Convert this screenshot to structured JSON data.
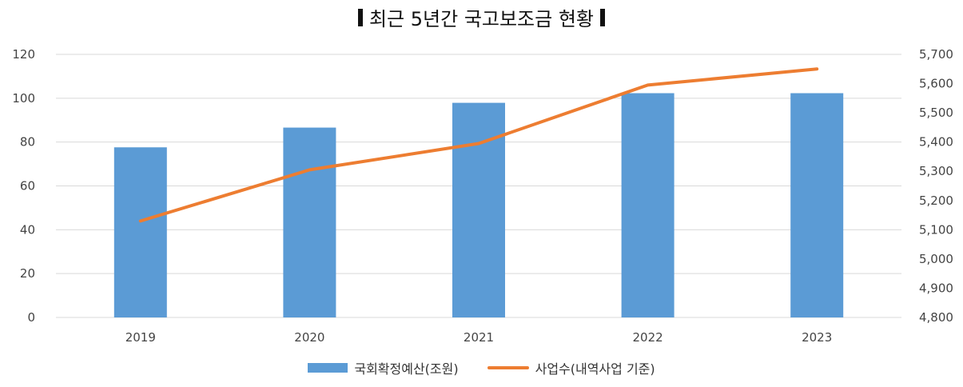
{
  "chart_data": {
    "type": "bar+line",
    "title": "최근 5년간 국고보조금 현황",
    "categories": [
      "2019",
      "2020",
      "2021",
      "2022",
      "2023"
    ],
    "series": [
      {
        "name": "국회확정예산(조원)",
        "type": "bar",
        "axis": "left",
        "color": "#5b9bd5",
        "values": [
          77.6,
          86.6,
          97.9,
          102.3,
          102.3
        ]
      },
      {
        "name": "사업수(내역사업 기준)",
        "type": "line",
        "axis": "right",
        "color": "#ed7d31",
        "values": [
          5130,
          5305,
          5395,
          5595,
          5650
        ]
      }
    ],
    "y_left": {
      "min": 0,
      "max": 120,
      "ticks": [
        "0",
        "20",
        "40",
        "60",
        "80",
        "100",
        "120"
      ]
    },
    "y_right": {
      "min": 4800,
      "max": 5700,
      "ticks": [
        "4,800",
        "4,900",
        "5,000",
        "5,100",
        "5,200",
        "5,300",
        "5,400",
        "5,500",
        "5,600",
        "5,700"
      ]
    },
    "grid": true,
    "legend_position": "bottom"
  }
}
